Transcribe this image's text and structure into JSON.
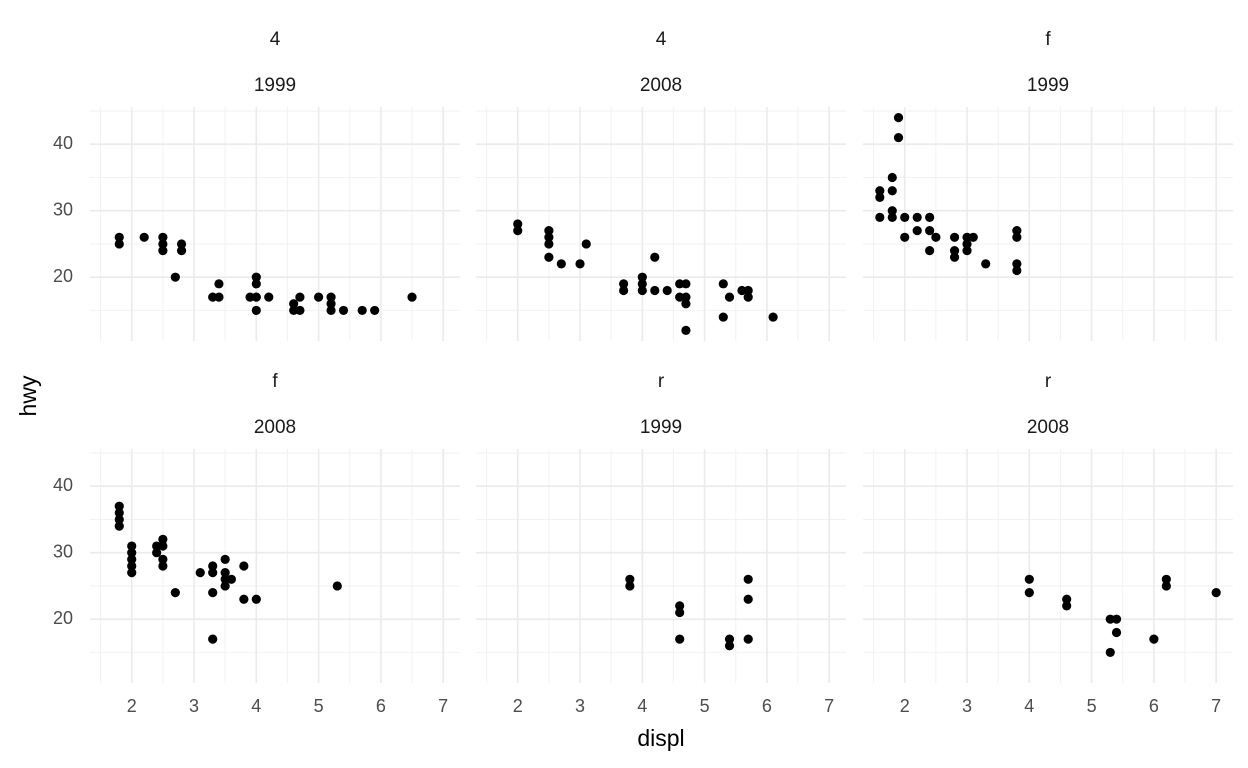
{
  "chart_data": {
    "type": "scatter",
    "x_label": "displ",
    "y_label": "hwy",
    "color": "#000000",
    "grid": true,
    "xlim": [
      1.33,
      7.27
    ],
    "ylim": [
      10.4,
      45.6
    ],
    "xticks": [
      2,
      3,
      4,
      5,
      6,
      7
    ],
    "yticks": [
      20,
      30,
      40
    ],
    "panels": [
      {
        "strip": [
          "4",
          "1999"
        ],
        "x": [
          1.8,
          1.8,
          2.2,
          2.5,
          2.5,
          2.5,
          2.7,
          2.8,
          2.8,
          3.3,
          3.4,
          3.4,
          3.9,
          4.0,
          4.0,
          4.0,
          4.0,
          4.2,
          4.6,
          4.6,
          4.7,
          4.7,
          5.0,
          5.2,
          5.2,
          5.2,
          5.4,
          5.7,
          5.9,
          6.5
        ],
        "y": [
          26,
          25,
          26,
          26,
          25,
          24,
          20,
          25,
          24,
          17,
          17,
          19,
          17,
          20,
          19,
          17,
          15,
          17,
          16,
          15,
          17,
          15,
          17,
          17,
          16,
          15,
          15,
          15,
          15,
          17
        ]
      },
      {
        "strip": [
          "4",
          "2008"
        ],
        "x": [
          2.0,
          2.0,
          2.5,
          2.5,
          2.5,
          2.5,
          2.7,
          3.0,
          3.1,
          3.7,
          3.7,
          4.0,
          4.0,
          4.0,
          4.2,
          4.2,
          4.4,
          4.6,
          4.6,
          4.7,
          4.7,
          4.7,
          4.7,
          5.3,
          5.3,
          5.4,
          5.6,
          5.7,
          5.7,
          6.1
        ],
        "y": [
          28,
          27,
          27,
          26,
          25,
          23,
          22,
          22,
          25,
          19,
          18,
          20,
          19,
          18,
          23,
          18,
          18,
          19,
          17,
          19,
          17,
          16,
          12,
          19,
          14,
          17,
          18,
          18,
          17,
          14
        ]
      },
      {
        "strip": [
          "f",
          "1999"
        ],
        "x": [
          1.6,
          1.6,
          1.6,
          1.8,
          1.8,
          1.8,
          1.8,
          1.9,
          1.9,
          2.0,
          2.0,
          2.2,
          2.2,
          2.4,
          2.4,
          2.4,
          2.5,
          2.8,
          2.8,
          2.8,
          3.0,
          3.0,
          3.0,
          3.1,
          3.3,
          3.8,
          3.8,
          3.8,
          3.8
        ],
        "y": [
          33,
          32,
          29,
          35,
          33,
          30,
          29,
          44,
          41,
          29,
          26,
          29,
          27,
          29,
          27,
          24,
          26,
          26,
          24,
          23,
          26,
          25,
          24,
          26,
          22,
          27,
          26,
          22,
          21
        ]
      },
      {
        "strip": [
          "f",
          "2008"
        ],
        "x": [
          1.8,
          1.8,
          1.8,
          1.8,
          2.0,
          2.0,
          2.0,
          2.0,
          2.0,
          2.4,
          2.4,
          2.5,
          2.5,
          2.5,
          2.5,
          2.7,
          3.1,
          3.3,
          3.3,
          3.3,
          3.3,
          3.5,
          3.5,
          3.5,
          3.5,
          3.6,
          3.8,
          3.8,
          4.0,
          5.3
        ],
        "y": [
          37,
          36,
          35,
          34,
          31,
          30,
          29,
          28,
          27,
          31,
          30,
          32,
          31,
          29,
          28,
          24,
          27,
          28,
          27,
          24,
          17,
          29,
          27,
          26,
          25,
          26,
          28,
          23,
          23,
          25
        ]
      },
      {
        "strip": [
          "r",
          "1999"
        ],
        "x": [
          3.8,
          3.8,
          4.6,
          4.6,
          4.6,
          5.4,
          5.4,
          5.7,
          5.7,
          5.7
        ],
        "y": [
          26,
          25,
          22,
          21,
          17,
          17,
          16,
          26,
          23,
          17
        ]
      },
      {
        "strip": [
          "r",
          "2008"
        ],
        "x": [
          4.0,
          4.0,
          4.6,
          4.6,
          5.3,
          5.3,
          5.4,
          5.4,
          6.0,
          6.2,
          6.2,
          7.0
        ],
        "y": [
          26,
          24,
          23,
          22,
          20,
          15,
          20,
          18,
          17,
          26,
          25,
          24
        ]
      }
    ]
  }
}
